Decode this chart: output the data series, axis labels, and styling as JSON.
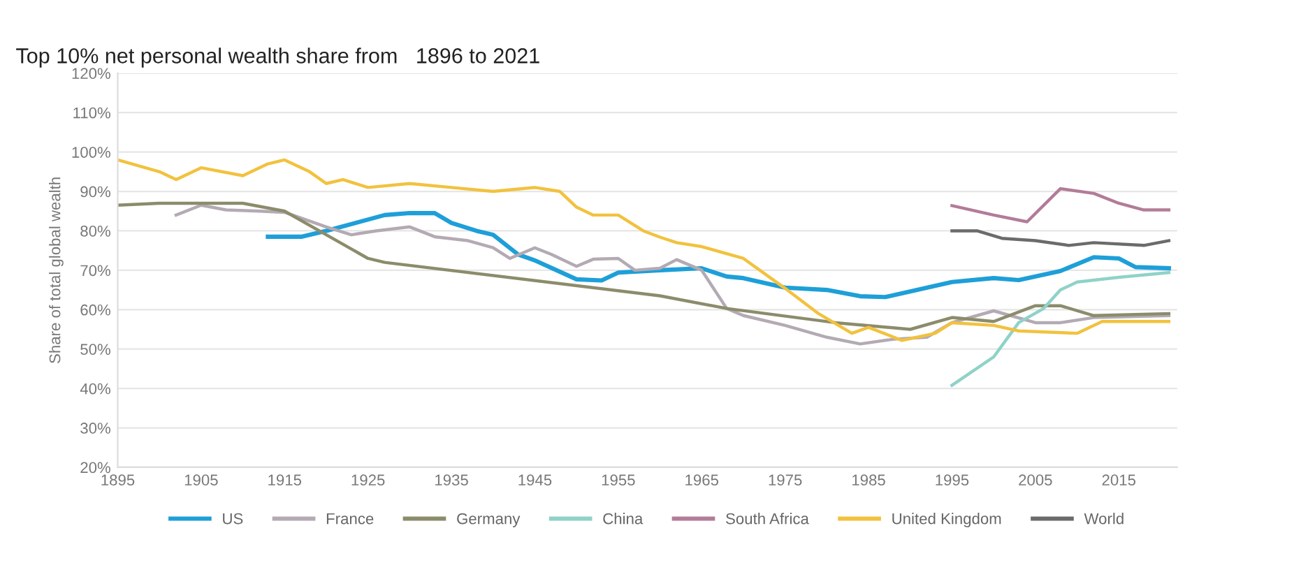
{
  "chart_data": {
    "type": "line",
    "title": "Top 10% net personal wealth share from   1896 to 2021",
    "ylabel": "Share of total global wealth",
    "xlim": [
      1895,
      2022
    ],
    "xticks": [
      1895,
      1905,
      1915,
      1925,
      1935,
      1945,
      1955,
      1965,
      1975,
      1985,
      1995,
      2005,
      2015
    ],
    "ylim": [
      20,
      120
    ],
    "yticks": [
      {
        "value": 20,
        "label": "20%"
      },
      {
        "value": 30,
        "label": "30%"
      },
      {
        "value": 40,
        "label": "40%"
      },
      {
        "value": 50,
        "label": "50%"
      },
      {
        "value": 60,
        "label": "60%"
      },
      {
        "value": 70,
        "label": "70%"
      },
      {
        "value": 80,
        "label": "80%"
      },
      {
        "value": 90,
        "label": "90%"
      },
      {
        "value": 100,
        "label": "100%"
      },
      {
        "value": 110,
        "label": "110%"
      },
      {
        "value": 120,
        "label": "120%"
      }
    ],
    "grid": "y",
    "legend": "bottom",
    "marker": "none",
    "line_style": "solid",
    "series": [
      {
        "name": "US",
        "color": "#1e9fd8",
        "x": [
          1913,
          1917,
          1920,
          1927,
          1930,
          1933,
          1935,
          1938,
          1940,
          1943,
          1945,
          1950,
          1953,
          1955,
          1960,
          1965,
          1968,
          1970,
          1975,
          1980,
          1984,
          1987,
          1990,
          1995,
          2000,
          2003,
          2008,
          2012,
          2015,
          2017,
          2021
        ],
        "values": [
          78.5,
          78.5,
          80,
          84,
          84.5,
          84.5,
          82,
          80,
          79,
          74,
          72.5,
          67.7,
          67.4,
          69.4,
          70,
          70.5,
          68.4,
          68,
          65.6,
          65,
          63.4,
          63.2,
          64.6,
          67,
          68,
          67.5,
          69.8,
          73.3,
          73,
          70.8,
          70.5
        ]
      },
      {
        "name": "France",
        "color": "#b3aab3",
        "x": [
          1902,
          1905,
          1908,
          1912,
          1915,
          1920,
          1923,
          1926,
          1930,
          1933,
          1937,
          1940,
          1942,
          1945,
          1947,
          1950,
          1952,
          1955,
          1957,
          1960,
          1962,
          1965,
          1968,
          1970,
          1975,
          1980,
          1984,
          1988,
          1992,
          1995,
          2000,
          2005,
          2008,
          2012,
          2021
        ],
        "values": [
          84,
          86.5,
          85.3,
          85,
          84.7,
          81,
          79,
          80,
          81,
          78.5,
          77.5,
          75.7,
          73,
          75.7,
          74,
          71,
          72.8,
          73,
          70,
          70.5,
          72.7,
          70,
          60.3,
          58.5,
          56,
          53,
          51.3,
          52.5,
          53,
          56.7,
          59.7,
          56.7,
          56.7,
          58,
          58.5
        ]
      },
      {
        "name": "Germany",
        "color": "#8c8c6c",
        "x": [
          1895,
          1900,
          1910,
          1915,
          1920,
          1925,
          1927,
          1960,
          1968,
          1981,
          1990,
          1995,
          2000,
          2005,
          2008,
          2012,
          2021
        ],
        "values": [
          86.5,
          87,
          87,
          85,
          79,
          73,
          72,
          63.5,
          60.3,
          56.7,
          55,
          58,
          57,
          61,
          61,
          58.5,
          59
        ]
      },
      {
        "name": "China",
        "color": "#8fd2c8",
        "x": [
          1995,
          2000,
          2003,
          2006,
          2008,
          2010,
          2015,
          2021
        ],
        "values": [
          40.8,
          48,
          56.7,
          60.3,
          65,
          67,
          68.2,
          69.4
        ]
      },
      {
        "name": "South Africa",
        "color": "#b27c98",
        "x": [
          1995,
          2000,
          2004,
          2008,
          2012,
          2015,
          2018,
          2021
        ],
        "values": [
          86.4,
          84,
          82.3,
          90.7,
          89.5,
          87,
          85.3,
          85.3
        ]
      },
      {
        "name": "United Kingdom",
        "color": "#f2c23e",
        "x": [
          1895,
          1900,
          1902,
          1905,
          1910,
          1913,
          1915,
          1918,
          1920,
          1922,
          1925,
          1930,
          1935,
          1940,
          1945,
          1948,
          1950,
          1952,
          1955,
          1958,
          1960,
          1962,
          1965,
          1970,
          1975,
          1979,
          1983,
          1985,
          1989,
          1993,
          1995,
          2000,
          2003,
          2010,
          2013,
          2021
        ],
        "values": [
          98,
          95,
          93,
          96,
          94,
          97,
          98,
          95,
          92,
          93,
          91,
          92,
          91,
          90,
          91,
          90,
          86,
          84,
          84,
          80,
          78.4,
          77,
          76,
          73,
          65.4,
          59,
          54,
          55.5,
          52.2,
          54,
          56.7,
          56,
          54.6,
          54,
          57,
          57
        ]
      },
      {
        "name": "World",
        "color": "#6b6b6b",
        "x": [
          1995,
          1998,
          2001,
          2005,
          2009,
          2012,
          2018,
          2021
        ],
        "values": [
          80,
          80,
          78.1,
          77.5,
          76.3,
          77,
          76.3,
          77.5
        ]
      }
    ]
  }
}
